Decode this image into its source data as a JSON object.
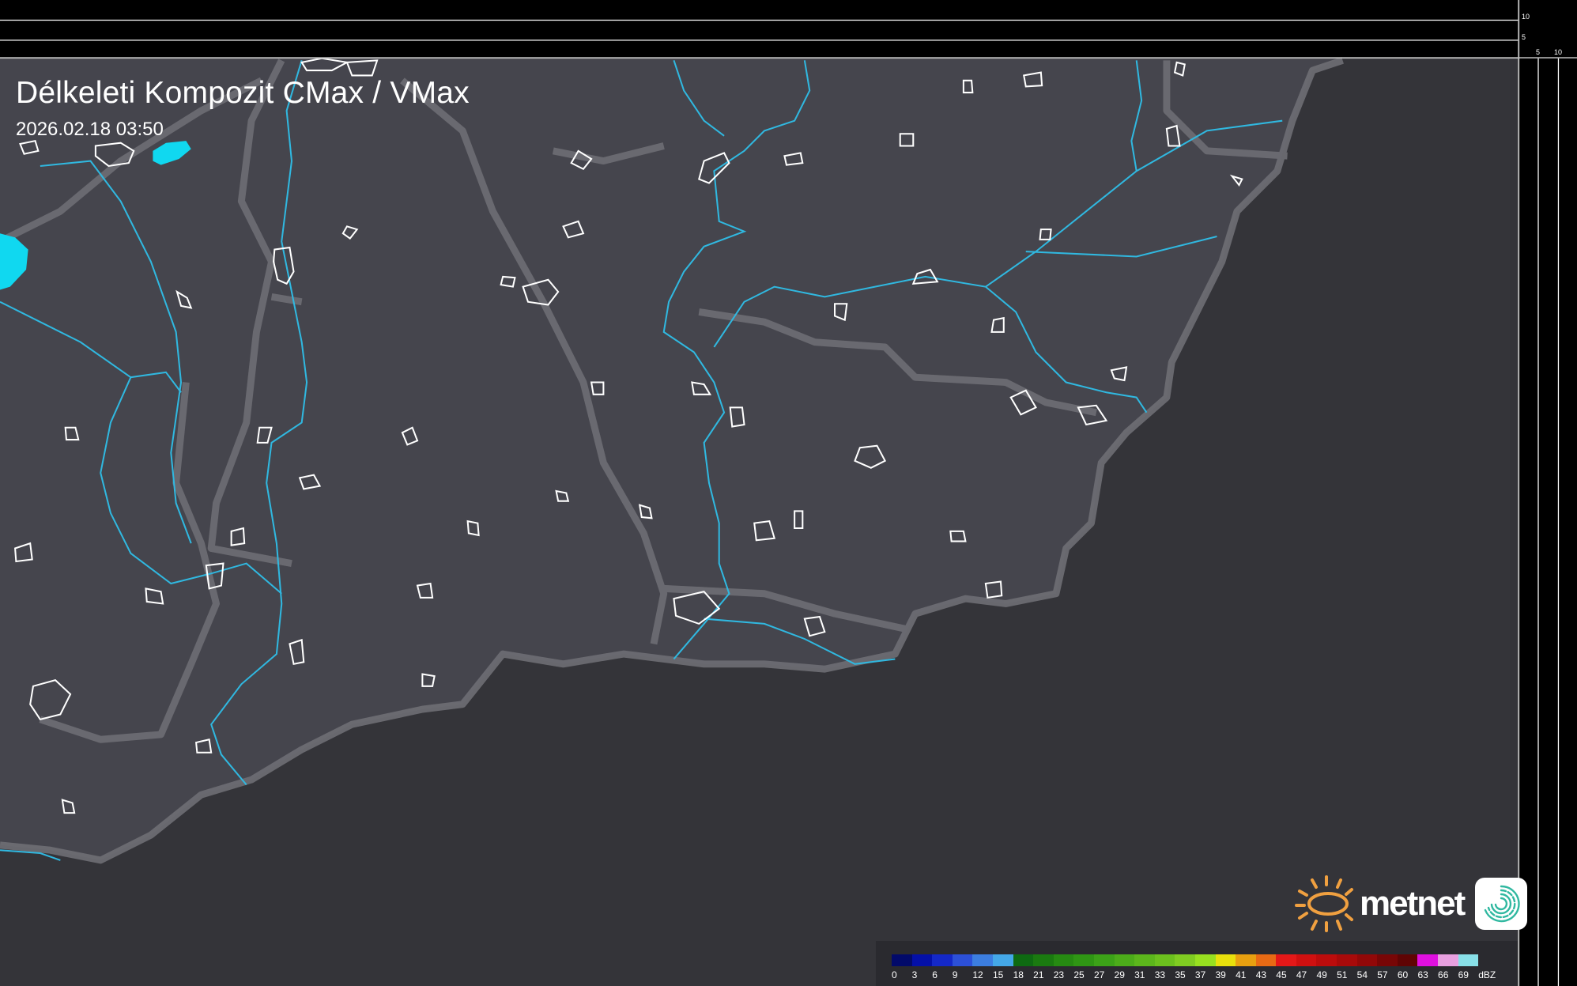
{
  "header": {
    "title": "Délkeleti Kompozit CMax / VMax",
    "timestamp": "2026.02.18 03:50"
  },
  "scale_ticks": {
    "vertical": [
      "10",
      "5"
    ],
    "horizontal": [
      "5",
      "10"
    ]
  },
  "legend": {
    "unit": "dBZ",
    "labels": [
      "0",
      "3",
      "6",
      "9",
      "12",
      "15",
      "18",
      "21",
      "23",
      "25",
      "27",
      "29",
      "31",
      "33",
      "35",
      "37",
      "39",
      "41",
      "43",
      "45",
      "47",
      "49",
      "51",
      "54",
      "57",
      "60",
      "63",
      "66",
      "69"
    ],
    "colors": [
      "#020a6a",
      "#0410a8",
      "#1428c8",
      "#2c50d8",
      "#3c7ee0",
      "#44a8e8",
      "#0e6a12",
      "#1a7a10",
      "#268a12",
      "#2f9614",
      "#3ca218",
      "#4cac1a",
      "#5cb61c",
      "#6cc01e",
      "#80cc22",
      "#98e020",
      "#e8e00c",
      "#e8a010",
      "#e86a14",
      "#e41818",
      "#d01010",
      "#bc0c0c",
      "#a80a0a",
      "#920808",
      "#780606",
      "#600404",
      "#e010e0",
      "#e8a0e0",
      "#88e0e8"
    ]
  },
  "logo": {
    "brand": "metnet",
    "sun_color": "#f0a040",
    "badge_color": "#30b8a0"
  },
  "map": {
    "land_color": "#45454d",
    "outside_color": "#343439",
    "river_color": "#30b8e0",
    "border_color": "#7a7a80",
    "echo_color": "#10d8f0"
  }
}
